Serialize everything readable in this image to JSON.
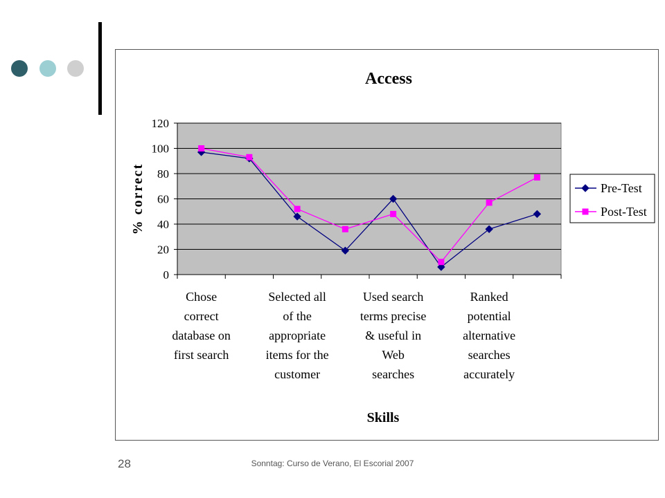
{
  "slide": {
    "page_number": "28",
    "footer": "Sonntag: Curso de Verano, El Escorial 2007"
  },
  "colors": {
    "dot1": "#2f5f69",
    "dot2": "#9ccfd4",
    "dot3": "#cfcfcf",
    "plot_bg": "#c0c0c0",
    "pre_test": "#000080",
    "post_test": "#ff00ff"
  },
  "chart_data": {
    "type": "line",
    "title": "Access",
    "xlabel": "Skills",
    "ylabel": "% correct",
    "ylim": [
      0,
      120
    ],
    "yticks": [
      0,
      20,
      40,
      60,
      80,
      100,
      120
    ],
    "grid": true,
    "legend": "right",
    "categories": [
      "Chose correct database on first search",
      "",
      "Selected all of the appropriate items for the customer",
      "",
      "Used search terms precise & useful in Web searches",
      "",
      "Ranked potential alternative searches accurately",
      ""
    ],
    "category_label_lines": [
      [
        "Chose",
        "correct",
        "database on",
        "first search"
      ],
      [],
      [
        "Selected all",
        "of the",
        "appropriate",
        "items for the",
        "customer"
      ],
      [],
      [
        "Used search",
        "terms precise",
        "& useful in",
        "Web",
        "searches"
      ],
      [],
      [
        "Ranked",
        "potential",
        "alternative",
        "searches",
        "accurately"
      ],
      []
    ],
    "series": [
      {
        "name": "Pre-Test",
        "marker": "diamond",
        "values": [
          97,
          92,
          46,
          19,
          60,
          6,
          36,
          48
        ]
      },
      {
        "name": "Post-Test",
        "marker": "square",
        "values": [
          100,
          93,
          52,
          36,
          48,
          10,
          57,
          77
        ]
      }
    ]
  }
}
